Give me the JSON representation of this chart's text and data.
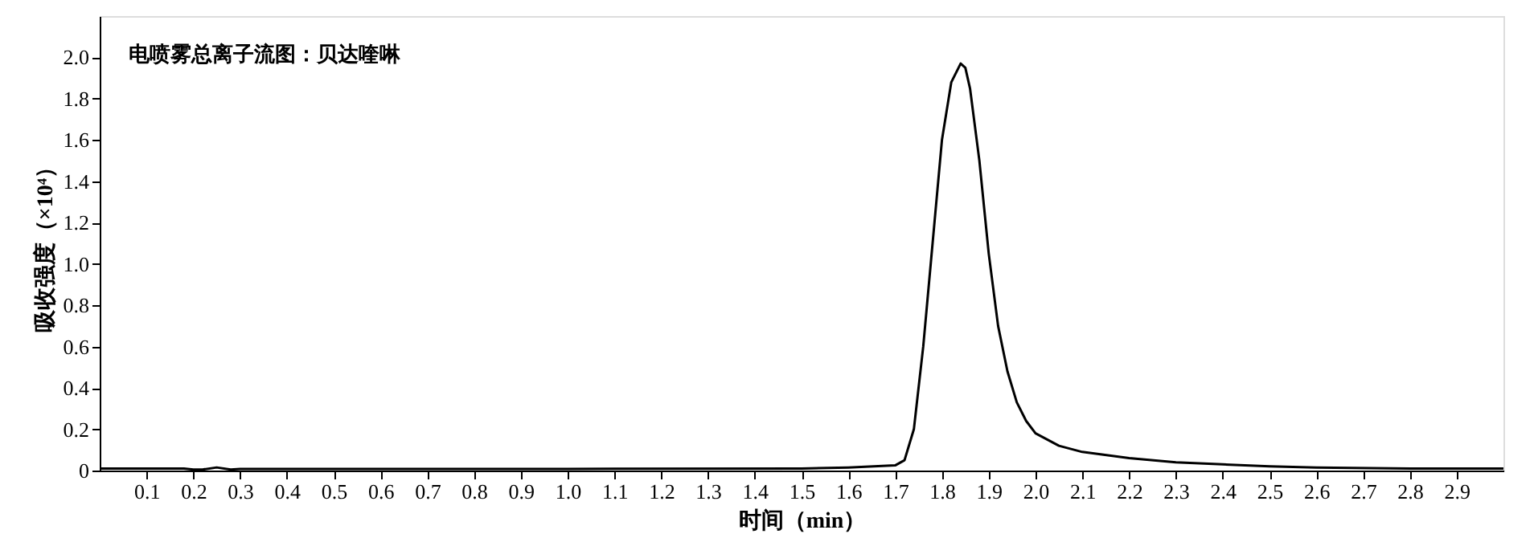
{
  "chart_data": {
    "type": "line",
    "annotations": [
      "电喷雾总离子流图：贝达喹啉"
    ],
    "xlabel": "时间（min）",
    "ylabel": "吸收强度（×10⁴）",
    "series": [
      {
        "color": "#000000",
        "x": [
          0,
          0.18,
          0.2,
          0.22,
          0.25,
          0.28,
          0.3,
          1.0,
          1.5,
          1.6,
          1.7,
          1.72,
          1.74,
          1.76,
          1.78,
          1.8,
          1.82,
          1.84,
          1.85,
          1.86,
          1.88,
          1.9,
          1.92,
          1.94,
          1.96,
          1.98,
          2.0,
          2.05,
          2.1,
          2.2,
          2.3,
          2.4,
          2.5,
          2.6,
          2.8,
          3.0
        ],
        "values": [
          0.01,
          0.01,
          0.005,
          0.005,
          0.015,
          0.005,
          0.008,
          0.008,
          0.01,
          0.015,
          0.025,
          0.05,
          0.2,
          0.6,
          1.1,
          1.6,
          1.88,
          1.97,
          1.95,
          1.85,
          1.5,
          1.05,
          0.7,
          0.48,
          0.33,
          0.24,
          0.18,
          0.12,
          0.09,
          0.06,
          0.04,
          0.03,
          0.02,
          0.015,
          0.01,
          0.01
        ]
      }
    ],
    "xlim": [
      0,
      3.0
    ],
    "ylim": [
      0,
      2.2
    ],
    "xticks": [
      0.1,
      0.2,
      0.3,
      0.4,
      0.5,
      0.6,
      0.7,
      0.8,
      0.9,
      {
        "value": 1.0,
        "label": "1.0"
      },
      1.1,
      1.2,
      1.3,
      1.4,
      1.5,
      1.6,
      1.7,
      1.8,
      1.9,
      {
        "value": 2.0,
        "label": "2.0"
      },
      2.1,
      2.2,
      2.3,
      2.4,
      2.5,
      2.6,
      2.7,
      2.8,
      2.9
    ],
    "yticks": [
      0,
      0.2,
      0.4,
      0.6,
      0.8,
      {
        "value": 1.0,
        "label": "1.0"
      },
      1.2,
      1.4,
      1.6,
      1.8,
      {
        "value": 2.0,
        "label": "2.0"
      }
    ],
    "grid": false,
    "marker": "none",
    "line_style": "solid"
  }
}
